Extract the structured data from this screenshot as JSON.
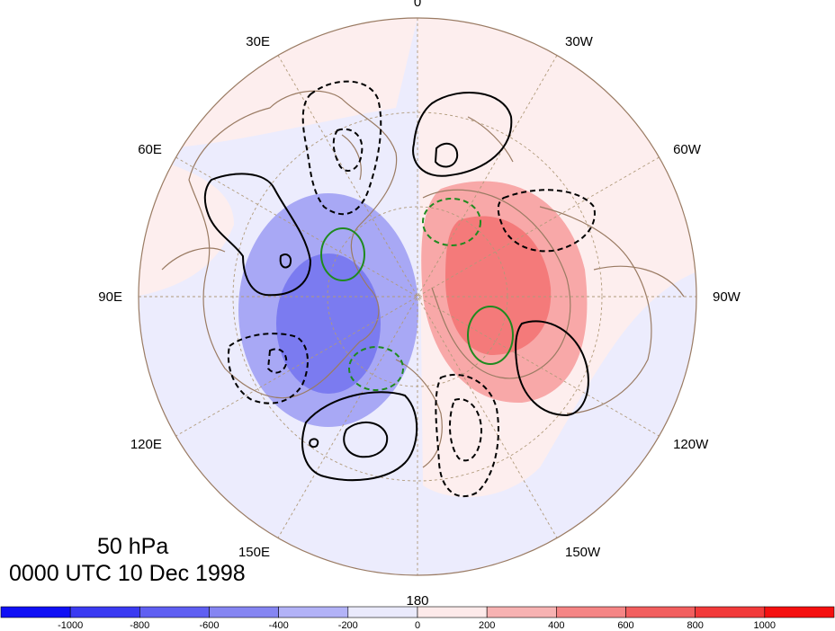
{
  "map": {
    "projection": "polar stereographic (North Pole)",
    "longitude_labels": [
      {
        "text": "0",
        "lon": 0
      },
      {
        "text": "30W",
        "lon": -30
      },
      {
        "text": "60W",
        "lon": -60
      },
      {
        "text": "90W",
        "lon": -90
      },
      {
        "text": "120W",
        "lon": -120
      },
      {
        "text": "150W",
        "lon": -150
      },
      {
        "text": "180",
        "lon": 180
      },
      {
        "text": "150E",
        "lon": 150
      },
      {
        "text": "120E",
        "lon": 120
      },
      {
        "text": "90E",
        "lon": 90
      },
      {
        "text": "60E",
        "lon": 60
      },
      {
        "text": "30E",
        "lon": 30
      }
    ],
    "level_title": "50 hPa",
    "time_title": "0000 UTC 10 Dec 1998",
    "colors": {
      "negative_strong": "#7b7bf0",
      "negative_mid": "#a8a8f5",
      "negative_weak": "#ececfd",
      "positive_weak": "#fdeeee",
      "positive_mid": "#f8a8a8",
      "positive_strong": "#f47a7a",
      "coastline": "#9a7b63",
      "grid": "#b09a7a",
      "contour_black": "#000000",
      "contour_green": "#1f8a1f"
    }
  },
  "colorbar": {
    "tick_labels": [
      "-1000",
      "-800",
      "-600",
      "-400",
      "-200",
      "0",
      "200",
      "400",
      "600",
      "800",
      "1000"
    ],
    "colors": [
      "#1010f5",
      "#3a3af2",
      "#5f5ff2",
      "#8585f2",
      "#b2b2f7",
      "#eaeafc",
      "#fdeaea",
      "#f7b2b2",
      "#f58585",
      "#f25f5f",
      "#f23a3a",
      "#f51010"
    ]
  }
}
